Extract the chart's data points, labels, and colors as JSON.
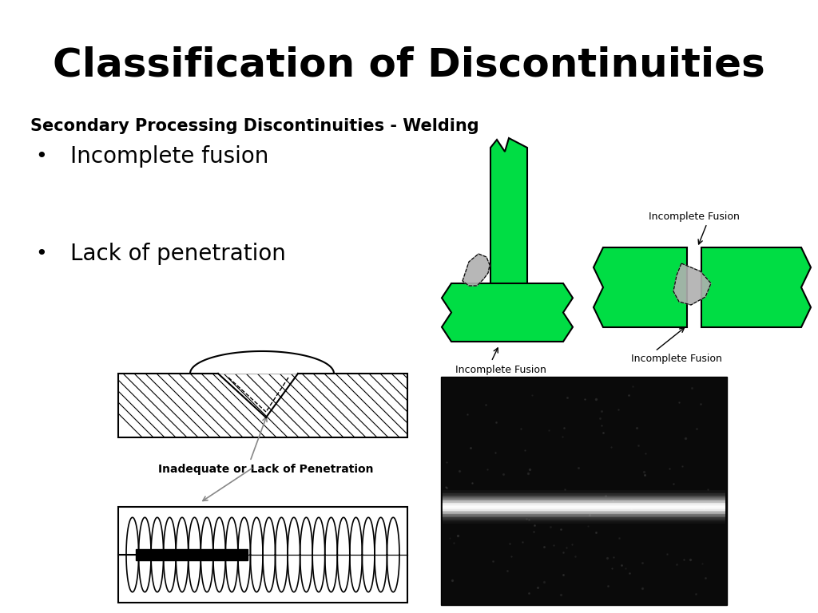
{
  "title": "Classification of Discontinuities",
  "subtitle": "Secondary Processing Discontinuities - Welding",
  "bullet1": "Incomplete fusion",
  "bullet2": "Lack of penetration",
  "bg_color": "#ffffff",
  "title_fontsize": 36,
  "subtitle_fontsize": 15,
  "bullet_fontsize": 20,
  "green_color": "#00dd44",
  "label_fontsize": 9,
  "label_fontsize2": 10
}
